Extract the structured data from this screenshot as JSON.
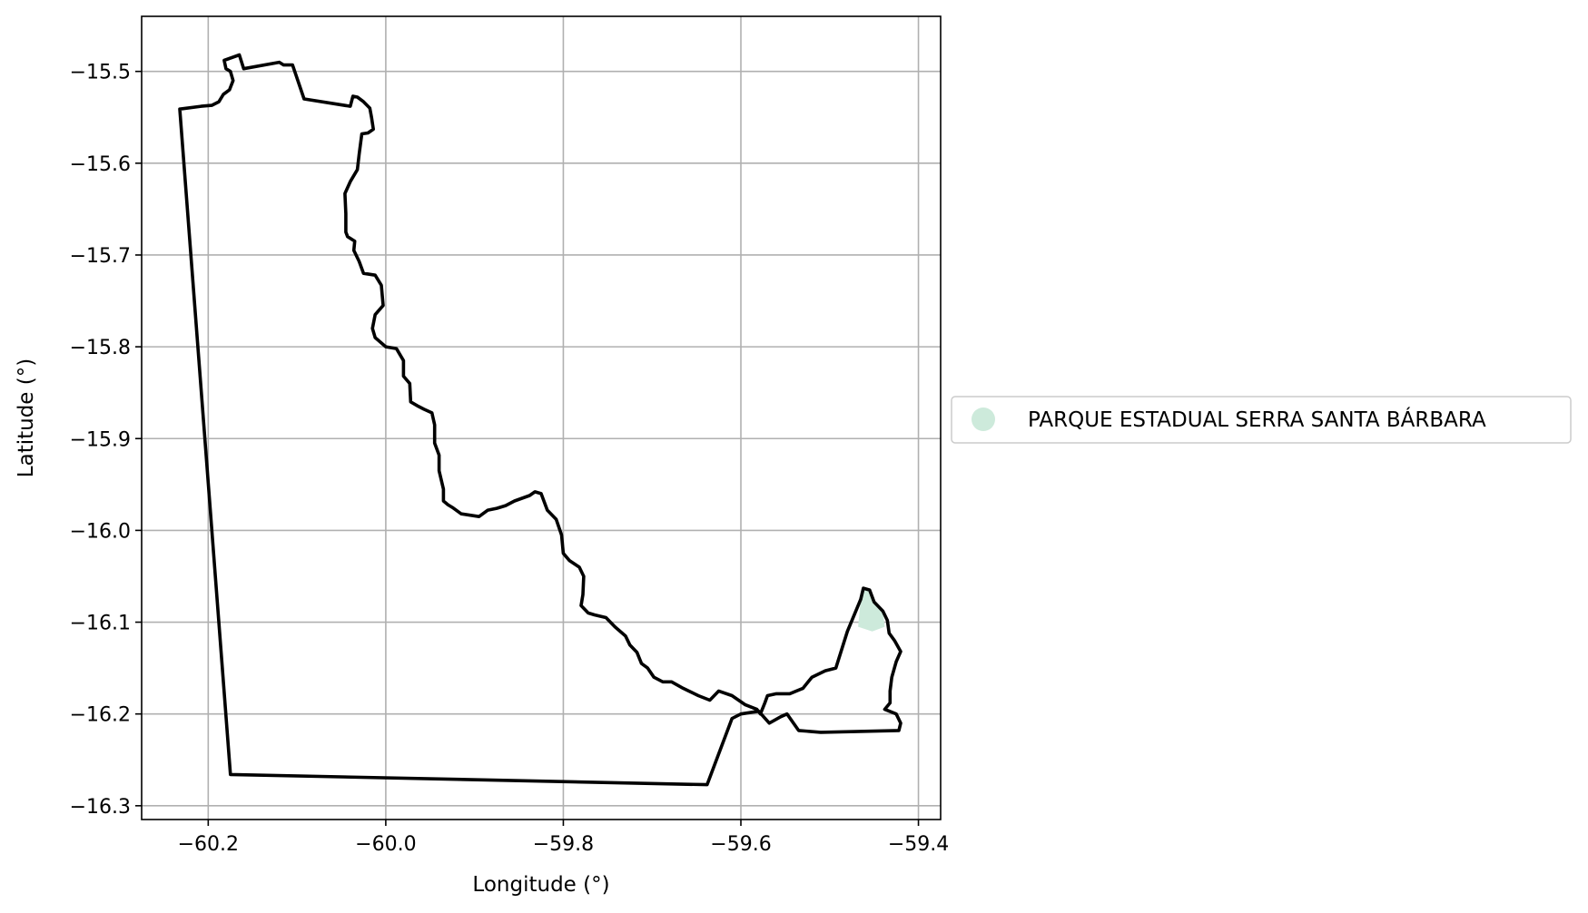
{
  "chart_data": {
    "type": "map",
    "xlabel": "Longitude (°)",
    "ylabel": "Latitude (°)",
    "xlim": [
      -60.275,
      -59.375
    ],
    "ylim": [
      -16.315,
      -15.44
    ],
    "xticks": [
      -60.2,
      -60.0,
      -59.8,
      -59.6,
      -59.4
    ],
    "xtick_labels": [
      "−60.2",
      "−60.0",
      "−59.8",
      "−59.6",
      "−59.4"
    ],
    "yticks": [
      -15.5,
      -15.6,
      -15.7,
      -15.8,
      -15.9,
      -16.0,
      -16.1,
      -16.2,
      -16.3
    ],
    "ytick_labels": [
      "−15.5",
      "−15.6",
      "−15.7",
      "−15.8",
      "−15.9",
      "−16.0",
      "−16.1",
      "−16.2",
      "−16.3"
    ],
    "grid": true,
    "legend_position": "outside-right",
    "legend": [
      {
        "label": "PARQUE ESTADUAL SERRA SANTA BÁRBARA",
        "color": "#cdeadb",
        "marker": "circle"
      }
    ],
    "boundary_color": "#000000",
    "boundary": [
      [
        -60.232,
        -15.541
      ],
      [
        -60.208,
        -15.538
      ],
      [
        -60.196,
        -15.537
      ],
      [
        -60.188,
        -15.533
      ],
      [
        -60.183,
        -15.525
      ],
      [
        -60.176,
        -15.52
      ],
      [
        -60.172,
        -15.51
      ],
      [
        -60.175,
        -15.5
      ],
      [
        -60.18,
        -15.497
      ],
      [
        -60.182,
        -15.488
      ],
      [
        -60.165,
        -15.482
      ],
      [
        -60.16,
        -15.497
      ],
      [
        -60.12,
        -15.49
      ],
      [
        -60.115,
        -15.493
      ],
      [
        -60.105,
        -15.493
      ],
      [
        -60.092,
        -15.53
      ],
      [
        -60.04,
        -15.538
      ],
      [
        -60.037,
        -15.527
      ],
      [
        -60.032,
        -15.528
      ],
      [
        -60.025,
        -15.533
      ],
      [
        -60.018,
        -15.54
      ],
      [
        -60.016,
        -15.55
      ],
      [
        -60.014,
        -15.563
      ],
      [
        -60.02,
        -15.567
      ],
      [
        -60.027,
        -15.568
      ],
      [
        -60.03,
        -15.59
      ],
      [
        -60.032,
        -15.607
      ],
      [
        -60.04,
        -15.62
      ],
      [
        -60.046,
        -15.633
      ],
      [
        -60.045,
        -15.655
      ],
      [
        -60.045,
        -15.675
      ],
      [
        -60.043,
        -15.68
      ],
      [
        -60.035,
        -15.685
      ],
      [
        -60.036,
        -15.695
      ],
      [
        -60.03,
        -15.707
      ],
      [
        -60.025,
        -15.72
      ],
      [
        -60.012,
        -15.722
      ],
      [
        -60.005,
        -15.733
      ],
      [
        -60.003,
        -15.755
      ],
      [
        -60.012,
        -15.765
      ],
      [
        -60.015,
        -15.78
      ],
      [
        -60.012,
        -15.79
      ],
      [
        -60.0,
        -15.8
      ],
      [
        -59.988,
        -15.802
      ],
      [
        -59.98,
        -15.815
      ],
      [
        -59.98,
        -15.832
      ],
      [
        -59.973,
        -15.84
      ],
      [
        -59.972,
        -15.86
      ],
      [
        -59.963,
        -15.865
      ],
      [
        -59.957,
        -15.868
      ],
      [
        -59.948,
        -15.872
      ],
      [
        -59.945,
        -15.885
      ],
      [
        -59.945,
        -15.905
      ],
      [
        -59.94,
        -15.918
      ],
      [
        -59.94,
        -15.935
      ],
      [
        -59.935,
        -15.955
      ],
      [
        -59.935,
        -15.968
      ],
      [
        -59.93,
        -15.972
      ],
      [
        -59.925,
        -15.975
      ],
      [
        -59.915,
        -15.982
      ],
      [
        -59.895,
        -15.985
      ],
      [
        -59.885,
        -15.978
      ],
      [
        -59.875,
        -15.976
      ],
      [
        -59.865,
        -15.973
      ],
      [
        -59.855,
        -15.968
      ],
      [
        -59.838,
        -15.962
      ],
      [
        -59.832,
        -15.958
      ],
      [
        -59.825,
        -15.96
      ],
      [
        -59.818,
        -15.978
      ],
      [
        -59.808,
        -15.988
      ],
      [
        -59.802,
        -16.005
      ],
      [
        -59.8,
        -16.025
      ],
      [
        -59.793,
        -16.033
      ],
      [
        -59.782,
        -16.04
      ],
      [
        -59.777,
        -16.05
      ],
      [
        -59.778,
        -16.07
      ],
      [
        -59.78,
        -16.082
      ],
      [
        -59.772,
        -16.09
      ],
      [
        -59.765,
        -16.092
      ],
      [
        -59.752,
        -16.095
      ],
      [
        -59.742,
        -16.105
      ],
      [
        -59.73,
        -16.115
      ],
      [
        -59.725,
        -16.125
      ],
      [
        -59.717,
        -16.133
      ],
      [
        -59.712,
        -16.145
      ],
      [
        -59.705,
        -16.15
      ],
      [
        -59.698,
        -16.16
      ],
      [
        -59.688,
        -16.165
      ],
      [
        -59.678,
        -16.165
      ],
      [
        -59.665,
        -16.172
      ],
      [
        -59.648,
        -16.18
      ],
      [
        -59.635,
        -16.185
      ],
      [
        -59.625,
        -16.175
      ],
      [
        -59.61,
        -16.18
      ],
      [
        -59.595,
        -16.19
      ],
      [
        -59.582,
        -16.195
      ],
      [
        -59.578,
        -16.2
      ],
      [
        -59.573,
        -16.188
      ],
      [
        -59.57,
        -16.18
      ],
      [
        -59.56,
        -16.178
      ],
      [
        -59.545,
        -16.178
      ],
      [
        -59.53,
        -16.172
      ],
      [
        -59.52,
        -16.16
      ],
      [
        -59.505,
        -16.153
      ],
      [
        -59.493,
        -16.15
      ],
      [
        -59.48,
        -16.11
      ],
      [
        -59.465,
        -16.075
      ],
      [
        -59.462,
        -16.063
      ],
      [
        -59.455,
        -16.065
      ],
      [
        -59.45,
        -16.078
      ],
      [
        -59.44,
        -16.088
      ],
      [
        -59.435,
        -16.098
      ],
      [
        -59.433,
        -16.112
      ],
      [
        -59.427,
        -16.12
      ],
      [
        -59.42,
        -16.132
      ],
      [
        -59.425,
        -16.143
      ],
      [
        -59.43,
        -16.16
      ],
      [
        -59.432,
        -16.175
      ],
      [
        -59.432,
        -16.188
      ],
      [
        -59.438,
        -16.195
      ],
      [
        -59.425,
        -16.2
      ],
      [
        -59.42,
        -16.21
      ],
      [
        -59.422,
        -16.218
      ],
      [
        -59.51,
        -16.22
      ],
      [
        -59.535,
        -16.218
      ],
      [
        -59.548,
        -16.2
      ],
      [
        -59.555,
        -16.203
      ],
      [
        -59.568,
        -16.21
      ],
      [
        -59.58,
        -16.197
      ],
      [
        -59.6,
        -16.2
      ],
      [
        -59.61,
        -16.205
      ],
      [
        -59.638,
        -16.277
      ],
      [
        -60.175,
        -16.266
      ],
      [
        -60.232,
        -15.541
      ]
    ],
    "park_area": [
      [
        -59.462,
        -16.063
      ],
      [
        -59.455,
        -16.065
      ],
      [
        -59.45,
        -16.078
      ],
      [
        -59.44,
        -16.088
      ],
      [
        -59.438,
        -16.105
      ],
      [
        -59.452,
        -16.11
      ],
      [
        -59.468,
        -16.105
      ],
      [
        -59.465,
        -16.075
      ]
    ]
  }
}
